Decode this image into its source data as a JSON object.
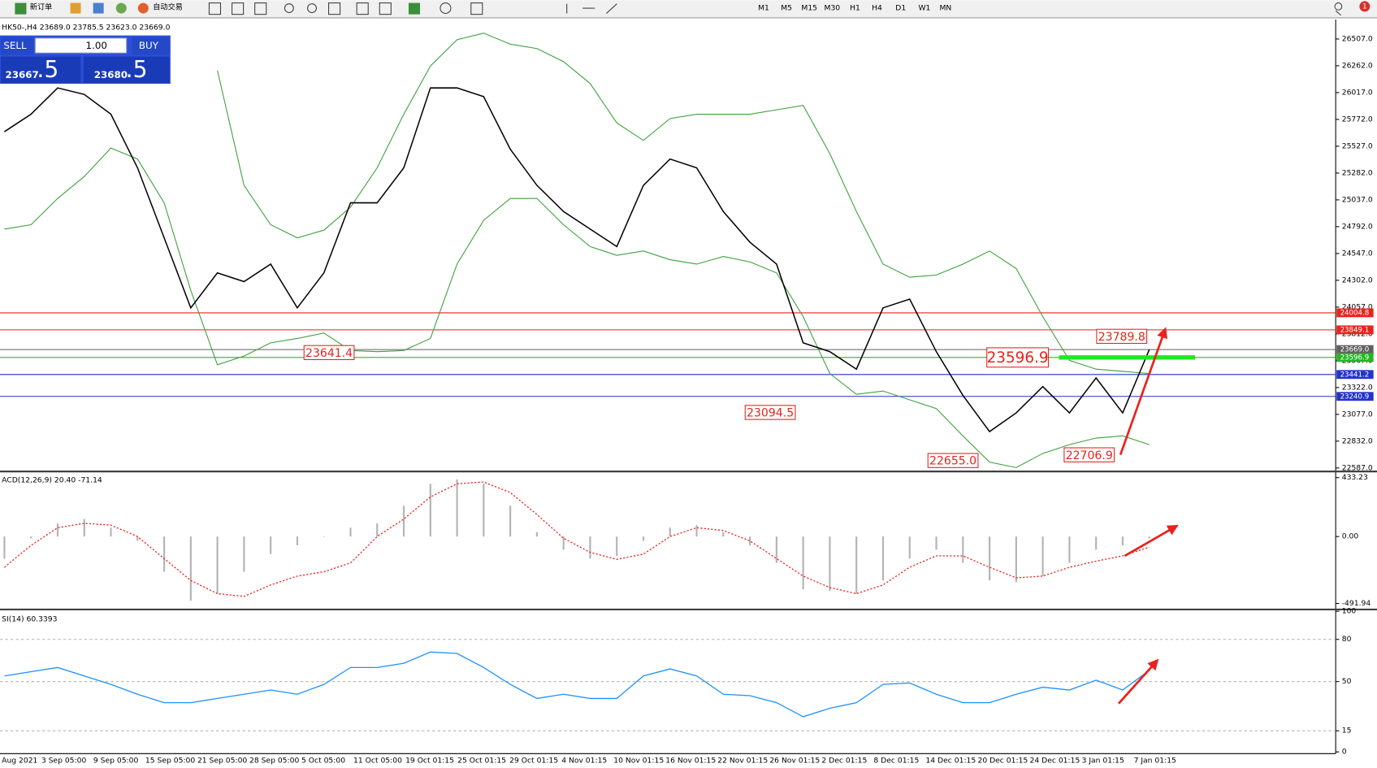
{
  "toolbar": {
    "new_order": "新订单",
    "auto_trading": "自动交易",
    "timeframes": [
      "M1",
      "M5",
      "M15",
      "M30",
      "H1",
      "H4",
      "D1",
      "W1",
      "MN"
    ],
    "notification_count": "1"
  },
  "one_click": {
    "sell": "SELL",
    "lot": "1.00",
    "buy": "BUY",
    "bid": "23667",
    "bid_fraction": ".5",
    "ask": "23680",
    "ask_fraction": ".5"
  },
  "time_axis": [
    "Aug 2021",
    "3 Sep 05:00",
    "9 Sep 05:00",
    "15 Sep 05:00",
    "21 Sep 05:00",
    "28 Sep 05:00",
    "5 Oct 05:00",
    "11 Oct 05:00",
    "19 Oct 01:15",
    "25 Oct 01:15",
    "29 Oct 01:15",
    "4 Nov 01:15",
    "10 Nov 01:15",
    "16 Nov 01:15",
    "22 Nov 01:15",
    "26 Nov 01:15",
    "2 Dec 01:15",
    "8 Dec 01:15",
    "14 Dec 01:15",
    "20 Dec 01:15",
    "24 Dec 01:15",
    "3 Jan 01:15",
    "7 Jan 01:15"
  ],
  "chart_data": [
    {
      "type": "line",
      "title": "HK50-,H4  23689.0 23785.5 23623.0 23669.0",
      "ylim": [
        22563,
        26684
      ],
      "yticks": [
        {
          "value": 26507,
          "label": "26507.0"
        },
        {
          "value": 26262,
          "label": "26262.0"
        },
        {
          "value": 26017,
          "label": "26017.0"
        },
        {
          "value": 25772,
          "label": "25772.0"
        },
        {
          "value": 25527,
          "label": "25527.0"
        },
        {
          "value": 25282,
          "label": "25282.0"
        },
        {
          "value": 25037,
          "label": "25037.0"
        },
        {
          "value": 24792,
          "label": "24792.0"
        },
        {
          "value": 24547,
          "label": "24547.0"
        },
        {
          "value": 24302,
          "label": "24302.0"
        },
        {
          "value": 24057,
          "label": "24057.0"
        },
        {
          "value": 23812,
          "label": "23812.0"
        },
        {
          "value": 23567,
          "label": "23567.0"
        },
        {
          "value": 23322,
          "label": "23322.0"
        },
        {
          "value": 23077,
          "label": "23077.0"
        },
        {
          "value": 22832,
          "label": "22832.0"
        },
        {
          "value": 22587,
          "label": "22587.0"
        }
      ],
      "close": [
        25660,
        25820,
        26060,
        26000,
        25820,
        25330,
        24690,
        24050,
        24370,
        24290,
        24450,
        24050,
        24370,
        25010,
        25010,
        25330,
        26060,
        26060,
        25980,
        25500,
        25170,
        24930,
        24770,
        24610,
        25170,
        25410,
        25330,
        24930,
        24650,
        24450,
        23730,
        23650,
        23490,
        24050,
        24130,
        23650,
        23250,
        22920,
        23090,
        23330,
        23090,
        23410,
        23090,
        23669
      ],
      "upper_band": [
        null,
        null,
        null,
        null,
        null,
        null,
        null,
        null,
        26220,
        25170,
        24810,
        24690,
        24760,
        24970,
        25330,
        25820,
        26260,
        26500,
        26560,
        26460,
        26420,
        26300,
        26100,
        25740,
        25580,
        25780,
        25820,
        25820,
        25820,
        25860,
        25900,
        25460,
        24930,
        24450,
        24330,
        24350,
        24450,
        24570,
        24410,
        23970,
        23570,
        23490,
        23470,
        23450
      ],
      "lower_band": [
        24770,
        24810,
        25050,
        25250,
        25510,
        25410,
        25010,
        24210,
        23530,
        23610,
        23730,
        23770,
        23820,
        23660,
        23650,
        23660,
        23770,
        24450,
        24850,
        25050,
        25050,
        24810,
        24610,
        24530,
        24570,
        24490,
        24450,
        24520,
        24470,
        24370,
        23970,
        23450,
        23260,
        23290,
        23210,
        23130,
        22880,
        22640,
        22590,
        22720,
        22800,
        22860,
        22880,
        22800
      ],
      "color": "#000000",
      "band_color": "#3ca03c",
      "price_lines": [
        {
          "value": 24004.8,
          "color": "#e8231e"
        },
        {
          "value": 23849.1,
          "color": "#e8231e"
        },
        {
          "value": 23669,
          "label": "23669.0",
          "color": "#606060"
        },
        {
          "value": 23596.9,
          "color": "#22b822"
        },
        {
          "value": 23441.2,
          "color": "#2233cc"
        },
        {
          "value": 23240.9,
          "color": "#2233cc"
        }
      ],
      "annotations": [
        {
          "value": 23641.4
        },
        {
          "value": 23596.9
        },
        {
          "value": 23789.8
        },
        {
          "value": 23094.5
        },
        {
          "value": 22655,
          "label": "22655.0"
        },
        {
          "value": 22706.9
        }
      ]
    },
    {
      "type": "bar",
      "title": "ACD(12,26,9) 20.40 -71.14",
      "ylim": [
        -530,
        472
      ],
      "yticks": [
        433.23,
        {
          "value": 0,
          "label": "0.00"
        },
        -491.94
      ],
      "values": [
        -162,
        -13,
        97,
        129,
        65,
        -32,
        -259,
        -472,
        -420,
        -259,
        -129,
        -65,
        0,
        65,
        97,
        226,
        388,
        420,
        388,
        226,
        32,
        -97,
        -162,
        -142,
        -32,
        65,
        84,
        32,
        -65,
        -194,
        -388,
        -401,
        -420,
        -323,
        -162,
        -97,
        -194,
        -323,
        -336,
        -291,
        -194,
        -97,
        -65,
        -13
      ],
      "signal": [
        -226,
        -65,
        65,
        97,
        84,
        0,
        -162,
        -323,
        -420,
        -440,
        -356,
        -291,
        -259,
        -194,
        0,
        129,
        291,
        388,
        401,
        323,
        162,
        -13,
        -116,
        -168,
        -129,
        0,
        65,
        45,
        -32,
        -162,
        -291,
        -375,
        -420,
        -356,
        -226,
        -142,
        -142,
        -226,
        -304,
        -291,
        -226,
        -181,
        -142,
        -78
      ],
      "color": "#b4b4b4",
      "signal_color": "#e8231e"
    },
    {
      "type": "line",
      "title": "SI(14) 60.3393",
      "ylim": [
        0,
        100
      ],
      "yticks": [
        100,
        80,
        50,
        15,
        0
      ],
      "values": [
        54,
        57,
        60,
        54,
        48,
        41,
        35,
        35,
        38,
        41,
        44,
        41,
        48,
        60,
        60,
        63,
        71,
        70,
        60,
        48,
        38,
        41,
        38,
        38,
        54,
        59,
        54,
        41,
        40,
        35,
        25,
        31,
        35,
        48,
        49,
        41,
        35,
        35,
        41,
        46,
        44,
        51,
        44,
        58
      ],
      "color": "#1e90ff"
    }
  ]
}
